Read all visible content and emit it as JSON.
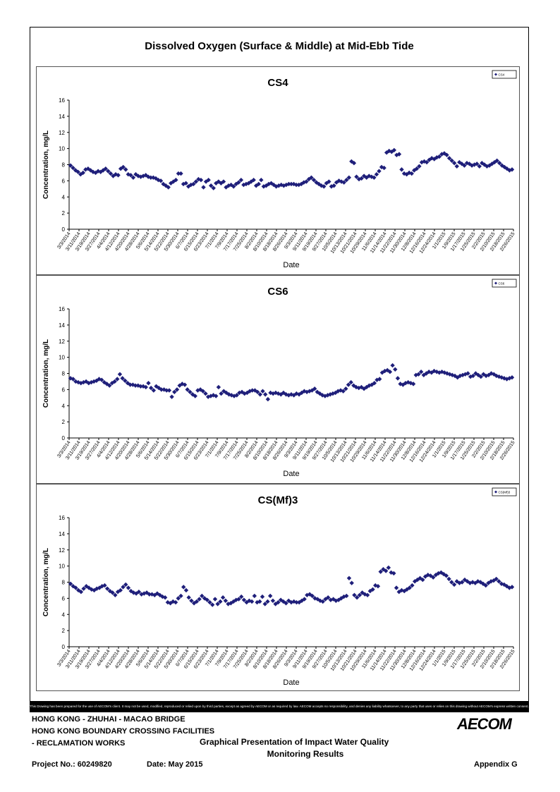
{
  "page": {
    "title": "Dissolved Oxygen (Surface & Middle) at Mid-Ebb Tide"
  },
  "chart_data": [
    {
      "type": "scatter",
      "title": "CS4",
      "xlabel": "Date",
      "ylabel": "Concentration, mg/L",
      "ylim": [
        0,
        16
      ],
      "yticks": [
        0,
        2,
        4,
        6,
        8,
        10,
        12,
        14,
        16
      ],
      "legend": "top-right",
      "grid": false,
      "series": [
        {
          "name": "CS4",
          "color": "#1f1f7a",
          "values": [
            7.9,
            7.6,
            7.3,
            7.1,
            6.8,
            7.0,
            7.4,
            7.5,
            7.3,
            7.1,
            7.0,
            7.2,
            7.1,
            7.3,
            7.5,
            7.2,
            6.9,
            6.6,
            6.8,
            6.7,
            7.5,
            7.7,
            7.4,
            6.8,
            6.7,
            6.4,
            6.8,
            6.6,
            6.5,
            6.6,
            6.7,
            6.5,
            6.4,
            6.4,
            6.3,
            6.1,
            6.0,
            5.6,
            5.4,
            5.2,
            5.7,
            5.9,
            6.1,
            6.9,
            6.9,
            5.6,
            5.7,
            5.3,
            5.5,
            5.6,
            5.9,
            6.2,
            6.1,
            5.2,
            5.9,
            6.1,
            5.4,
            5.1,
            5.7,
            5.9,
            5.7,
            5.9,
            5.2,
            5.4,
            5.5,
            5.3,
            5.6,
            5.8,
            6.1,
            5.5,
            5.6,
            5.7,
            5.9,
            6.1,
            5.4,
            5.6,
            6.1,
            5.3,
            5.4,
            5.6,
            5.7,
            5.5,
            5.3,
            5.4,
            5.5,
            5.4,
            5.5,
            5.6,
            5.6,
            5.6,
            5.5,
            5.5,
            5.6,
            5.8,
            5.9,
            6.2,
            6.4,
            6.1,
            5.8,
            5.6,
            5.4,
            5.3,
            5.7,
            5.9,
            5.3,
            5.4,
            5.8,
            6.0,
            5.9,
            5.8,
            6.1,
            6.4,
            8.4,
            8.2,
            6.5,
            6.2,
            6.3,
            6.6,
            6.4,
            6.6,
            6.5,
            6.4,
            6.8,
            7.2,
            7.7,
            7.6,
            9.5,
            9.7,
            9.6,
            9.8,
            9.2,
            9.3,
            7.4,
            6.9,
            6.8,
            7.0,
            6.9,
            7.3,
            7.5,
            7.8,
            8.3,
            8.4,
            8.3,
            8.6,
            8.8,
            8.7,
            8.9,
            9.0,
            9.3,
            9.4,
            9.2,
            8.8,
            8.5,
            8.2,
            7.8,
            8.3,
            8.1,
            7.9,
            8.2,
            8.1,
            7.9,
            8.0,
            8.1,
            7.8,
            8.2,
            8.0,
            7.8,
            7.9,
            8.1,
            8.3,
            8.5,
            8.2,
            7.9,
            7.7,
            7.5,
            7.3,
            7.4
          ]
        }
      ]
    },
    {
      "type": "scatter",
      "title": "CS6",
      "xlabel": "Date",
      "ylabel": "Concentration, mg/L",
      "ylim": [
        0,
        16
      ],
      "yticks": [
        0,
        2,
        4,
        6,
        8,
        10,
        12,
        14,
        16
      ],
      "legend": "top-right",
      "grid": false,
      "series": [
        {
          "name": "CS6",
          "color": "#1f1f7a",
          "values": [
            7.4,
            7.3,
            7.0,
            6.9,
            6.8,
            6.9,
            7.0,
            6.8,
            6.9,
            7.0,
            7.1,
            7.3,
            7.2,
            6.9,
            6.7,
            6.5,
            6.8,
            7.0,
            7.3,
            7.9,
            7.4,
            7.1,
            6.8,
            6.6,
            6.6,
            6.5,
            6.5,
            6.4,
            6.4,
            6.3,
            6.8,
            6.2,
            5.9,
            6.4,
            6.2,
            6.0,
            6.0,
            5.9,
            5.9,
            5.1,
            5.7,
            6.0,
            6.5,
            6.7,
            6.6,
            6.0,
            5.7,
            5.4,
            5.2,
            5.9,
            6.0,
            5.8,
            5.5,
            5.1,
            5.2,
            5.3,
            5.2,
            6.3,
            5.5,
            5.8,
            5.6,
            5.4,
            5.3,
            5.2,
            5.3,
            5.6,
            5.7,
            5.5,
            5.6,
            5.8,
            5.9,
            5.9,
            5.7,
            5.4,
            5.8,
            5.4,
            4.8,
            5.6,
            5.5,
            5.6,
            5.5,
            5.4,
            5.6,
            5.4,
            5.3,
            5.4,
            5.3,
            5.5,
            5.4,
            5.6,
            5.8,
            5.7,
            5.8,
            5.9,
            6.1,
            5.7,
            5.5,
            5.3,
            5.2,
            5.3,
            5.4,
            5.5,
            5.6,
            5.8,
            5.9,
            5.8,
            6.1,
            6.6,
            6.9,
            6.5,
            6.3,
            6.2,
            6.3,
            6.1,
            6.3,
            6.5,
            6.6,
            6.8,
            7.2,
            7.3,
            8.1,
            8.3,
            8.4,
            8.2,
            9.0,
            8.5,
            7.4,
            6.7,
            6.6,
            6.8,
            6.9,
            6.8,
            6.7,
            7.8,
            7.9,
            8.2,
            7.8,
            8.0,
            8.2,
            8.1,
            8.3,
            8.2,
            8.1,
            8.2,
            8.1,
            8.0,
            7.9,
            7.8,
            7.7,
            7.5,
            7.7,
            7.8,
            7.9,
            8.0,
            7.6,
            7.7,
            8.0,
            7.8,
            7.6,
            7.9,
            7.7,
            7.8,
            8.0,
            7.9,
            7.7,
            7.6,
            7.5,
            7.4,
            7.3,
            7.4,
            7.5
          ]
        }
      ]
    },
    {
      "type": "scatter",
      "title": "CS(Mf)3",
      "xlabel": "Date",
      "ylabel": "Concentration, mg/L",
      "ylim": [
        0,
        16
      ],
      "yticks": [
        0,
        2,
        4,
        6,
        8,
        10,
        12,
        14,
        16
      ],
      "legend": "top-right",
      "grid": false,
      "series": [
        {
          "name": "CS(Mf)3",
          "color": "#1f1f7a",
          "values": [
            7.8,
            7.5,
            7.3,
            7.0,
            6.8,
            7.2,
            7.5,
            7.3,
            7.1,
            7.0,
            7.2,
            7.3,
            7.5,
            7.6,
            7.2,
            6.9,
            6.7,
            6.4,
            6.8,
            7.0,
            7.4,
            7.7,
            7.3,
            6.9,
            6.7,
            6.6,
            6.8,
            6.5,
            6.6,
            6.7,
            6.5,
            6.5,
            6.4,
            6.6,
            6.4,
            6.2,
            6.1,
            5.5,
            5.4,
            5.6,
            5.5,
            6.0,
            6.3,
            7.4,
            7.0,
            6.1,
            5.7,
            5.4,
            5.6,
            5.9,
            6.3,
            6.0,
            5.8,
            5.5,
            5.2,
            5.9,
            5.3,
            5.6,
            6.1,
            5.7,
            5.3,
            5.4,
            5.6,
            5.8,
            5.9,
            6.2,
            5.8,
            5.5,
            5.7,
            5.6,
            6.3,
            5.5,
            5.6,
            6.2,
            5.3,
            5.6,
            6.3,
            5.7,
            5.3,
            5.5,
            5.8,
            5.6,
            5.4,
            5.7,
            5.5,
            5.6,
            5.5,
            5.5,
            5.7,
            5.9,
            6.4,
            6.5,
            6.3,
            6.0,
            5.9,
            5.7,
            5.6,
            5.9,
            6.1,
            5.8,
            5.9,
            5.7,
            5.8,
            6.0,
            6.2,
            6.3,
            8.5,
            7.9,
            6.4,
            6.1,
            6.4,
            6.7,
            6.5,
            6.4,
            6.9,
            7.1,
            7.6,
            7.5,
            9.3,
            9.6,
            9.4,
            9.8,
            9.2,
            9.1,
            7.3,
            6.8,
            7.0,
            6.9,
            7.1,
            7.3,
            7.6,
            8.1,
            8.3,
            8.5,
            8.3,
            8.7,
            8.9,
            8.8,
            8.6,
            8.9,
            9.1,
            9.2,
            9.0,
            8.8,
            8.4,
            8.0,
            7.7,
            8.1,
            7.9,
            8.0,
            8.3,
            8.1,
            7.9,
            8.0,
            7.9,
            8.1,
            8.0,
            7.8,
            7.6,
            7.9,
            8.1,
            8.2,
            8.4,
            8.1,
            7.8,
            7.7,
            7.5,
            7.3,
            7.4
          ]
        }
      ]
    }
  ],
  "x_tick_labels": [
    "3/3/2014",
    "3/11/2014",
    "3/19/2014",
    "3/27/2014",
    "4/4/2014",
    "4/12/2014",
    "4/20/2014",
    "4/28/2014",
    "5/6/2014",
    "5/14/2014",
    "5/22/2014",
    "5/30/2014",
    "6/7/2014",
    "6/15/2014",
    "6/23/2014",
    "7/1/2014",
    "7/9/2014",
    "7/17/2014",
    "7/25/2014",
    "8/2/2014",
    "8/10/2014",
    "8/18/2014",
    "8/26/2014",
    "9/3/2014",
    "9/11/2014",
    "9/19/2014",
    "9/27/2014",
    "10/5/2014",
    "10/13/2014",
    "10/21/2014",
    "10/29/2014",
    "11/6/2014",
    "11/14/2014",
    "11/22/2014",
    "11/30/2014",
    "12/8/2014",
    "12/16/2014",
    "12/24/2014",
    "1/1/2015",
    "1/9/2015",
    "1/17/2015",
    "1/25/2015",
    "2/2/2015",
    "2/10/2015",
    "2/18/2015",
    "2/26/2015"
  ],
  "disclaimer": "This Drawing has been prepared for the use of AECOM's client. It may not be used, modified, reproduced or relied upon by third parties, except as agreed by AECOM or as required by law. AECOM accepts no responsibility, and denies any liability whatsoever, to any party that uses or relies on this drawing without AECOM's express written consent.",
  "footer": {
    "line1": "HONG KONG - ZHUHAI - MACAO BRIDGE",
    "line2": "HONG KONG BOUNDARY CROSSING FACILITIES",
    "line3": "- RECLAMATION WORKS",
    "center1": "Graphical Presentation of Impact Water Quality",
    "center2": "Monitoring Results",
    "project": "Project No.: 60249820",
    "date": "Date: May 2015",
    "appendix": "Appendix G",
    "logo": "AECOM"
  }
}
